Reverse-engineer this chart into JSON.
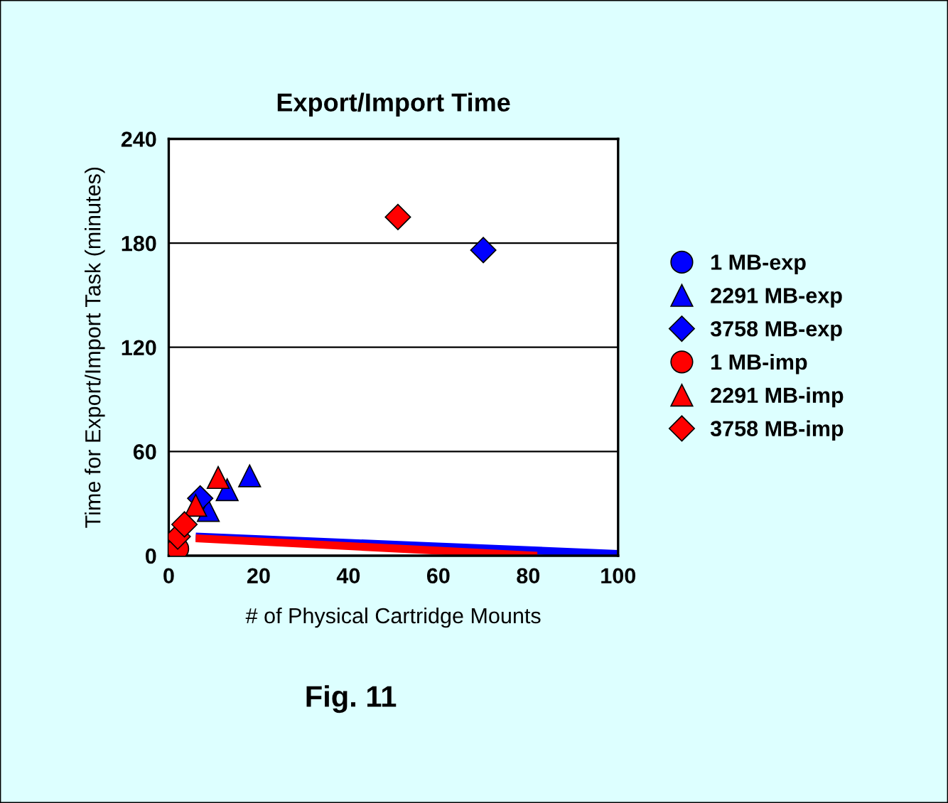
{
  "chart_data": {
    "type": "scatter",
    "title": "Export/Import Time",
    "xlabel": "# of Physical Cartridge Mounts",
    "ylabel": "Time for Export/Import Task (minutes)",
    "xlim": [
      0,
      100
    ],
    "xticks": [
      0,
      20,
      40,
      60,
      80,
      100
    ],
    "ylim": [
      0,
      240
    ],
    "yticks": [
      0,
      60,
      120,
      180,
      240
    ],
    "grid": "y",
    "legend": "right",
    "series": [
      {
        "name": "1 MB-exp",
        "color": "#0000ff",
        "marker": "circle"
      },
      {
        "name": "2291 MB-exp",
        "color": "#0000ff",
        "marker": "triangle",
        "x": [
          8.8,
          13,
          18
        ],
        "values": [
          26,
          38,
          46
        ]
      },
      {
        "name": "3758 MB-exp",
        "color": "#0000ff",
        "marker": "diamond",
        "x": [
          7,
          70
        ],
        "values": [
          33,
          176
        ]
      },
      {
        "name": "1 MB-imp",
        "color": "#ff0000",
        "marker": "circle",
        "x": [
          2
        ],
        "values": [
          4
        ]
      },
      {
        "name": "2291 MB-imp",
        "color": "#ff0000",
        "marker": "triangle",
        "x": [
          6,
          11
        ],
        "values": [
          29,
          45
        ]
      },
      {
        "name": "3758 MB-imp",
        "color": "#ff0000",
        "marker": "diamond",
        "x": [
          2,
          3.5,
          51
        ],
        "values": [
          11,
          18,
          195
        ]
      },
      {
        "type": "line",
        "color": "#0000ff",
        "x": [
          6,
          100
        ],
        "values": [
          11,
          1
        ]
      },
      {
        "type": "line",
        "color": "#ff0000",
        "x": [
          6,
          82
        ],
        "values": [
          10,
          0
        ]
      }
    ],
    "annotations": [
      "Fig. 11"
    ]
  }
}
